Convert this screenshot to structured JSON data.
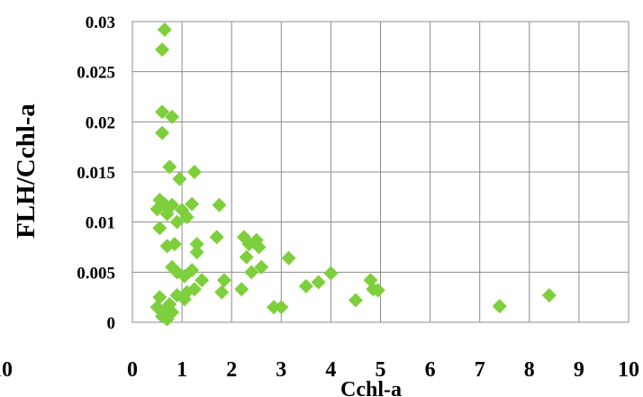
{
  "chart_data": {
    "type": "scatter",
    "xlabel": "Cchl-a",
    "ylabel": "FLH/Cchl-a",
    "xlim": [
      0,
      10
    ],
    "ylim": [
      0,
      0.03
    ],
    "grid": true,
    "marker": "diamond",
    "marker_color": "#7dcf3b",
    "x_ticks": [
      "0",
      "1",
      "2",
      "3",
      "4",
      "5",
      "6",
      "7",
      "8",
      "9",
      "10"
    ],
    "y_ticks": [
      "0",
      "0.005",
      "0.01",
      "0.015",
      "0.02",
      "0.025",
      "0.03"
    ],
    "cropped_left_label": "10",
    "points": [
      {
        "x": 0.65,
        "y": 0.0292
      },
      {
        "x": 0.6,
        "y": 0.0272
      },
      {
        "x": 0.6,
        "y": 0.021
      },
      {
        "x": 0.8,
        "y": 0.0205
      },
      {
        "x": 0.6,
        "y": 0.0189
      },
      {
        "x": 0.75,
        "y": 0.0155
      },
      {
        "x": 1.25,
        "y": 0.015
      },
      {
        "x": 0.95,
        "y": 0.0143
      },
      {
        "x": 0.55,
        "y": 0.0122
      },
      {
        "x": 0.65,
        "y": 0.0118
      },
      {
        "x": 0.8,
        "y": 0.0117
      },
      {
        "x": 0.5,
        "y": 0.0113
      },
      {
        "x": 0.7,
        "y": 0.0108
      },
      {
        "x": 1.0,
        "y": 0.0112
      },
      {
        "x": 1.2,
        "y": 0.0118
      },
      {
        "x": 1.1,
        "y": 0.0105
      },
      {
        "x": 0.9,
        "y": 0.01
      },
      {
        "x": 0.55,
        "y": 0.0094
      },
      {
        "x": 1.75,
        "y": 0.0117
      },
      {
        "x": 0.7,
        "y": 0.0076
      },
      {
        "x": 0.85,
        "y": 0.0078
      },
      {
        "x": 1.3,
        "y": 0.0078
      },
      {
        "x": 1.3,
        "y": 0.007
      },
      {
        "x": 1.7,
        "y": 0.0085
      },
      {
        "x": 2.25,
        "y": 0.0085
      },
      {
        "x": 2.35,
        "y": 0.0078
      },
      {
        "x": 2.5,
        "y": 0.0082
      },
      {
        "x": 2.55,
        "y": 0.0075
      },
      {
        "x": 2.3,
        "y": 0.0065
      },
      {
        "x": 3.15,
        "y": 0.0064
      },
      {
        "x": 0.8,
        "y": 0.0055
      },
      {
        "x": 0.9,
        "y": 0.005
      },
      {
        "x": 1.05,
        "y": 0.0046
      },
      {
        "x": 1.2,
        "y": 0.0052
      },
      {
        "x": 1.4,
        "y": 0.0042
      },
      {
        "x": 1.85,
        "y": 0.0042
      },
      {
        "x": 2.4,
        "y": 0.005
      },
      {
        "x": 2.6,
        "y": 0.0055
      },
      {
        "x": 1.25,
        "y": 0.0033
      },
      {
        "x": 1.1,
        "y": 0.003
      },
      {
        "x": 1.8,
        "y": 0.003
      },
      {
        "x": 2.2,
        "y": 0.0033
      },
      {
        "x": 3.5,
        "y": 0.0036
      },
      {
        "x": 3.75,
        "y": 0.004
      },
      {
        "x": 4.0,
        "y": 0.0049
      },
      {
        "x": 4.8,
        "y": 0.0042
      },
      {
        "x": 4.85,
        "y": 0.0033
      },
      {
        "x": 4.95,
        "y": 0.0032
      },
      {
        "x": 0.55,
        "y": 0.0025
      },
      {
        "x": 0.9,
        "y": 0.0027
      },
      {
        "x": 1.05,
        "y": 0.0023
      },
      {
        "x": 4.5,
        "y": 0.0022
      },
      {
        "x": 8.4,
        "y": 0.0027
      },
      {
        "x": 0.5,
        "y": 0.0015
      },
      {
        "x": 0.65,
        "y": 0.0012
      },
      {
        "x": 0.75,
        "y": 0.0018
      },
      {
        "x": 0.8,
        "y": 0.001
      },
      {
        "x": 0.6,
        "y": 0.0006
      },
      {
        "x": 0.7,
        "y": 0.0003
      },
      {
        "x": 2.85,
        "y": 0.0015
      },
      {
        "x": 3.0,
        "y": 0.0015
      },
      {
        "x": 7.4,
        "y": 0.0016
      }
    ]
  }
}
